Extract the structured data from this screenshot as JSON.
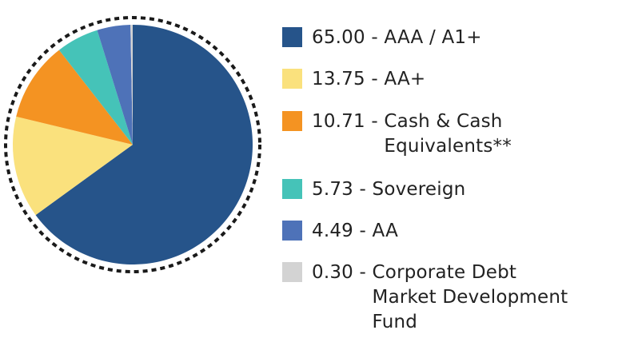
{
  "chart_data": {
    "type": "pie",
    "title": "",
    "unit": "%",
    "start_angle_deg": 0,
    "direction": "clockwise",
    "outline": "dashed circle",
    "legend_position": "right",
    "slices": [
      {
        "value": 65.0,
        "value_label": "65.00",
        "label": "AAA / A1+",
        "label_lines": [
          "AAA / A1+"
        ],
        "color": "#26548a"
      },
      {
        "value": 13.75,
        "value_label": "13.75",
        "label": "AA+",
        "label_lines": [
          "AA+"
        ],
        "color": "#fae17d"
      },
      {
        "value": 10.71,
        "value_label": "10.71",
        "label": "Cash & Cash Equivalents**",
        "label_lines": [
          "Cash & Cash",
          "Equivalents**"
        ],
        "color": "#f49322"
      },
      {
        "value": 5.73,
        "value_label": "5.73",
        "label": "Sovereign",
        "label_lines": [
          "Sovereign"
        ],
        "color": "#45c3b8"
      },
      {
        "value": 4.49,
        "value_label": "4.49",
        "label": "AA",
        "label_lines": [
          "AA"
        ],
        "color": "#4e72b8"
      },
      {
        "value": 0.3,
        "value_label": "0.30",
        "label": "Corporate Debt Market Development Fund",
        "label_lines": [
          "Corporate Debt",
          "Market Development",
          "Fund"
        ],
        "color": "#d3d3d3"
      }
    ]
  }
}
